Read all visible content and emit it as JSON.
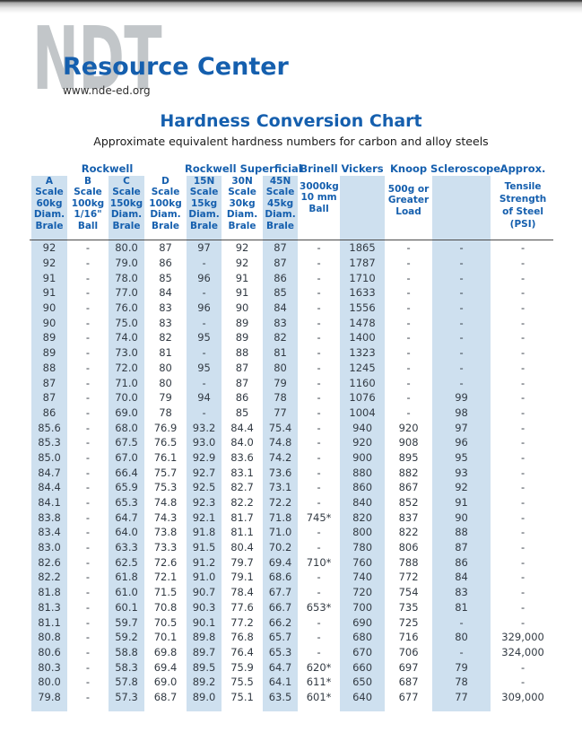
{
  "header": {
    "logo_text": "NDT",
    "logo_subtext": "Resource Center",
    "website": "www.nde-ed.org"
  },
  "title": "Hardness Conversion Chart",
  "subtitle": "Approximate equivalent hardness numbers for carbon and alloy steels",
  "colors": {
    "band": "#cee0ef",
    "header_blue": "#155fae",
    "text": "#333b44",
    "logo_gray": "#c2c6c9"
  },
  "chart_data": {
    "type": "table",
    "title": "Hardness Conversion Chart",
    "group_headers": [
      {
        "label": "Rockwell",
        "colspan": 4
      },
      {
        "label": "Rockwell Superficial",
        "colspan": 3
      },
      {
        "label": "Brinell",
        "colspan": 1
      },
      {
        "label": "Vickers",
        "colspan": 1
      },
      {
        "label": "Knoop",
        "colspan": 1
      },
      {
        "label": "Scleroscope",
        "colspan": 1
      },
      {
        "label": "Approx.",
        "colspan": 1
      }
    ],
    "columns": [
      {
        "id": "rockwell-a",
        "header_lines": [
          "A",
          "Scale",
          "60kg",
          "Diam.",
          "Brale"
        ],
        "shaded": true
      },
      {
        "id": "rockwell-b",
        "header_lines": [
          "B",
          "Scale",
          "100kg",
          "1/16\"",
          "Ball"
        ],
        "shaded": false
      },
      {
        "id": "rockwell-c",
        "header_lines": [
          "C",
          "Scale",
          "150kg",
          "Diam.",
          "Brale"
        ],
        "shaded": true
      },
      {
        "id": "rockwell-d",
        "header_lines": [
          "D",
          "Scale",
          "100kg",
          "Diam.",
          "Brale"
        ],
        "shaded": false
      },
      {
        "id": "superficial-15n",
        "header_lines": [
          "15N",
          "Scale",
          "15kg",
          "Diam.",
          "Brale"
        ],
        "shaded": true
      },
      {
        "id": "superficial-30n",
        "header_lines": [
          "30N",
          "Scale",
          "30kg",
          "Diam.",
          "Brale"
        ],
        "shaded": false
      },
      {
        "id": "superficial-45n",
        "header_lines": [
          "45N",
          "Scale",
          "45kg",
          "Diam.",
          "Brale"
        ],
        "shaded": true
      },
      {
        "id": "brinell",
        "header_lines": [
          "3000kg",
          "10 mm",
          "Ball"
        ],
        "shaded": false
      },
      {
        "id": "vickers",
        "header_lines": [],
        "shaded": true
      },
      {
        "id": "knoop",
        "header_lines": [
          "500g or",
          "Greater",
          "Load"
        ],
        "shaded": false
      },
      {
        "id": "scleroscope",
        "header_lines": [],
        "shaded": true
      },
      {
        "id": "tensile",
        "header_lines": [
          "Tensile",
          "Strength",
          "of Steel",
          "(PSI)"
        ],
        "shaded": false
      }
    ],
    "rows": [
      [
        "92",
        "-",
        "80.0",
        "87",
        "97",
        "92",
        "87",
        "-",
        "1865",
        "-",
        "-",
        "-"
      ],
      [
        "92",
        "-",
        "79.0",
        "86",
        "-",
        "92",
        "87",
        "-",
        "1787",
        "-",
        "-",
        "-"
      ],
      [
        "91",
        "-",
        "78.0",
        "85",
        "96",
        "91",
        "86",
        "-",
        "1710",
        "-",
        "-",
        "-"
      ],
      [
        "91",
        "-",
        "77.0",
        "84",
        "-",
        "91",
        "85",
        "-",
        "1633",
        "-",
        "-",
        "-"
      ],
      [
        "90",
        "-",
        "76.0",
        "83",
        "96",
        "90",
        "84",
        "-",
        "1556",
        "-",
        "-",
        "-"
      ],
      [
        "90",
        "-",
        "75.0",
        "83",
        "-",
        "89",
        "83",
        "-",
        "1478",
        "-",
        "-",
        "-"
      ],
      [
        "89",
        "-",
        "74.0",
        "82",
        "95",
        "89",
        "82",
        "-",
        "1400",
        "-",
        "-",
        "-"
      ],
      [
        "89",
        "-",
        "73.0",
        "81",
        "-",
        "88",
        "81",
        "-",
        "1323",
        "-",
        "-",
        "-"
      ],
      [
        "88",
        "-",
        "72.0",
        "80",
        "95",
        "87",
        "80",
        "-",
        "1245",
        "-",
        "-",
        "-"
      ],
      [
        "87",
        "-",
        "71.0",
        "80",
        "-",
        "87",
        "79",
        "-",
        "1160",
        "-",
        "-",
        "-"
      ],
      [
        "87",
        "-",
        "70.0",
        "79",
        "94",
        "86",
        "78",
        "-",
        "1076",
        "-",
        "99",
        "-"
      ],
      [
        "86",
        "-",
        "69.0",
        "78",
        "-",
        "85",
        "77",
        "-",
        "1004",
        "-",
        "98",
        "-"
      ],
      [
        "85.6",
        "-",
        "68.0",
        "76.9",
        "93.2",
        "84.4",
        "75.4",
        "-",
        "940",
        "920",
        "97",
        "-"
      ],
      [
        "85.3",
        "-",
        "67.5",
        "76.5",
        "93.0",
        "84.0",
        "74.8",
        "-",
        "920",
        "908",
        "96",
        "-"
      ],
      [
        "85.0",
        "-",
        "67.0",
        "76.1",
        "92.9",
        "83.6",
        "74.2",
        "-",
        "900",
        "895",
        "95",
        "-"
      ],
      [
        "84.7",
        "-",
        "66.4",
        "75.7",
        "92.7",
        "83.1",
        "73.6",
        "-",
        "880",
        "882",
        "93",
        "-"
      ],
      [
        "84.4",
        "-",
        "65.9",
        "75.3",
        "92.5",
        "82.7",
        "73.1",
        "-",
        "860",
        "867",
        "92",
        "-"
      ],
      [
        "84.1",
        "-",
        "65.3",
        "74.8",
        "92.3",
        "82.2",
        "72.2",
        "-",
        "840",
        "852",
        "91",
        "-"
      ],
      [
        "83.8",
        "-",
        "64.7",
        "74.3",
        "92.1",
        "81.7",
        "71.8",
        "745*",
        "820",
        "837",
        "90",
        "-"
      ],
      [
        "83.4",
        "-",
        "64.0",
        "73.8",
        "91.8",
        "81.1",
        "71.0",
        "-",
        "800",
        "822",
        "88",
        "-"
      ],
      [
        "83.0",
        "-",
        "63.3",
        "73.3",
        "91.5",
        "80.4",
        "70.2",
        "-",
        "780",
        "806",
        "87",
        "-"
      ],
      [
        "82.6",
        "-",
        "62.5",
        "72.6",
        "91.2",
        "79.7",
        "69.4",
        "710*",
        "760",
        "788",
        "86",
        "-"
      ],
      [
        "82.2",
        "-",
        "61.8",
        "72.1",
        "91.0",
        "79.1",
        "68.6",
        "-",
        "740",
        "772",
        "84",
        "-"
      ],
      [
        "81.8",
        "-",
        "61.0",
        "71.5",
        "90.7",
        "78.4",
        "67.7",
        "-",
        "720",
        "754",
        "83",
        "-"
      ],
      [
        "81.3",
        "-",
        "60.1",
        "70.8",
        "90.3",
        "77.6",
        "66.7",
        "653*",
        "700",
        "735",
        "81",
        "-"
      ],
      [
        "81.1",
        "-",
        "59.7",
        "70.5",
        "90.1",
        "77.2",
        "66.2",
        "-",
        "690",
        "725",
        "-",
        "-"
      ],
      [
        "80.8",
        "-",
        "59.2",
        "70.1",
        "89.8",
        "76.8",
        "65.7",
        "-",
        "680",
        "716",
        "80",
        "329,000"
      ],
      [
        "80.6",
        "-",
        "58.8",
        "69.8",
        "89.7",
        "76.4",
        "65.3",
        "-",
        "670",
        "706",
        "-",
        "324,000"
      ],
      [
        "80.3",
        "-",
        "58.3",
        "69.4",
        "89.5",
        "75.9",
        "64.7",
        "620*",
        "660",
        "697",
        "79",
        "-"
      ],
      [
        "80.0",
        "-",
        "57.8",
        "69.0",
        "89.2",
        "75.5",
        "64.1",
        "611*",
        "650",
        "687",
        "78",
        "-"
      ],
      [
        "79.8",
        "-",
        "57.3",
        "68.7",
        "89.0",
        "75.1",
        "63.5",
        "601*",
        "640",
        "677",
        "77",
        "309,000"
      ]
    ]
  }
}
